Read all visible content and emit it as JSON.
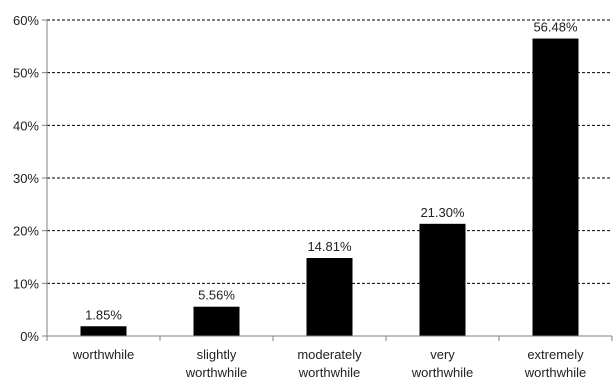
{
  "chart_data": {
    "type": "bar",
    "categories": [
      [
        "worthwhile"
      ],
      [
        "slightly",
        "worthwhile"
      ],
      [
        "moderately",
        "worthwhile"
      ],
      [
        "very",
        "worthwhile"
      ],
      [
        "extremely",
        "worthwhile"
      ]
    ],
    "values": [
      1.85,
      5.56,
      14.81,
      21.3,
      56.48
    ],
    "data_labels": [
      "1.85%",
      "5.56%",
      "14.81%",
      "21.30%",
      "56.48%"
    ],
    "y_ticks": [
      0,
      10,
      20,
      30,
      40,
      50,
      60
    ],
    "y_tick_labels": [
      "0%",
      "10%",
      "20%",
      "30%",
      "40%",
      "50%",
      "60%"
    ],
    "ylim": [
      0,
      60
    ],
    "grid": "horizontal-dashed",
    "legend": "none",
    "title": "",
    "xlabel": "",
    "ylabel": "",
    "colors": {
      "bar": "#000000",
      "grid": "#000000",
      "axis": "#808080"
    }
  }
}
